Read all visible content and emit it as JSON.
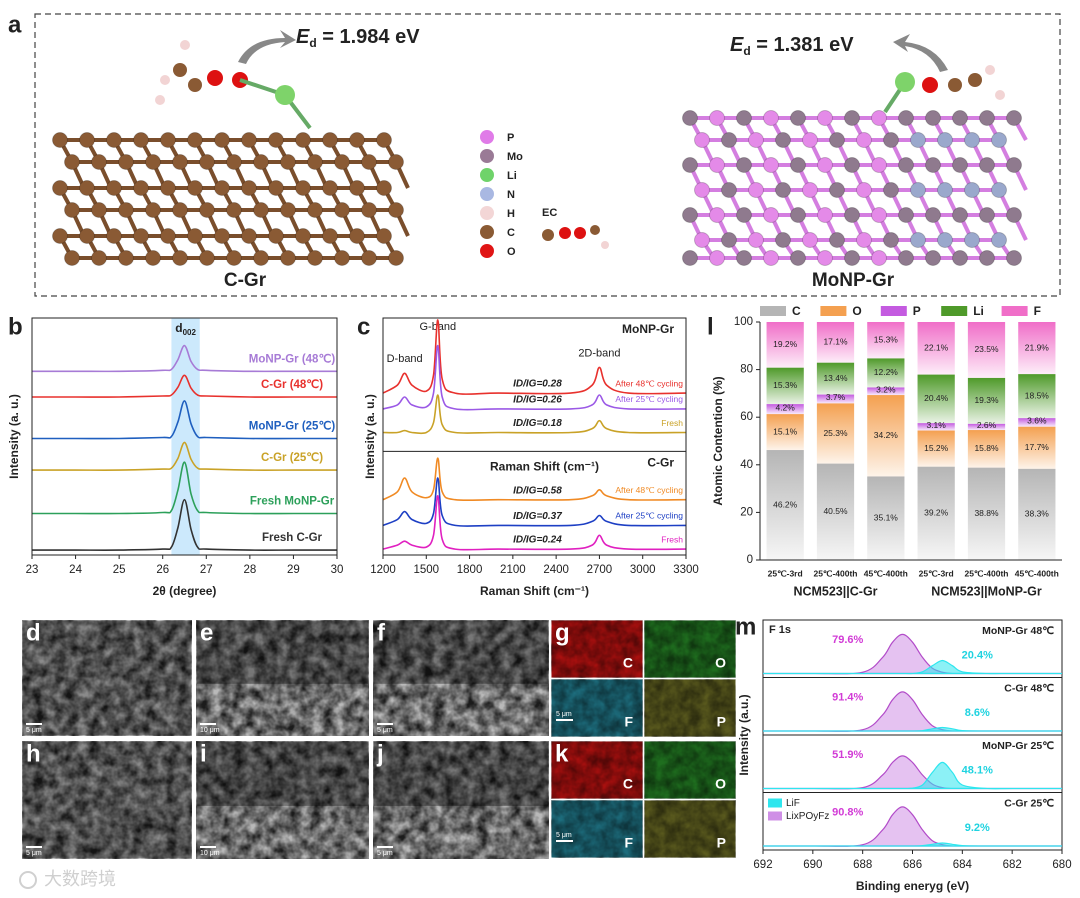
{
  "figure": {
    "panel_a": {
      "label": "a",
      "left": {
        "symbol": "E",
        "sub": "d",
        "text": " = 1.984 eV",
        "name": "C-Gr"
      },
      "right": {
        "symbol": "E",
        "sub": "d",
        "text": " = 1.381 eV",
        "name": "MoNP-Gr"
      },
      "legend": [
        "P",
        "Mo",
        "Li",
        "N",
        "H",
        "C",
        "O"
      ],
      "molecule_label": "EC"
    },
    "sem": [
      {
        "label": "d",
        "scale": "5 μm"
      },
      {
        "label": "e",
        "scale": "10 μm"
      },
      {
        "label": "f",
        "scale": "5 μm"
      },
      {
        "label": "h",
        "scale": "5 μm"
      },
      {
        "label": "i",
        "scale": "10 μm"
      },
      {
        "label": "j",
        "scale": "5 μm"
      }
    ],
    "eds": [
      {
        "label": "g",
        "scale": "5 μm",
        "maps": [
          "C",
          "O",
          "F",
          "P"
        ]
      },
      {
        "label": "k",
        "scale": "5 μm",
        "maps": [
          "C",
          "O",
          "F",
          "P"
        ]
      }
    ],
    "watermark": "大数跨境"
  },
  "chart_data": [
    {
      "panel": "b",
      "type": "line",
      "xlabel": "2θ (degree)",
      "ylabel": "Intensity (a. u.)",
      "x": [
        23,
        24,
        25,
        26,
        26.2,
        26.35,
        26.5,
        26.65,
        26.8,
        27,
        28,
        29,
        30
      ],
      "xlim": [
        23,
        30
      ],
      "xticks": [
        23,
        24,
        25,
        26,
        27,
        28,
        29,
        30
      ],
      "ylim": [
        0,
        12
      ],
      "highlight": [
        26.2,
        26.85
      ],
      "highlight_label": "d",
      "highlight_label_sub": "002",
      "series": [
        {
          "name": "Fresh C-Gr",
          "color": "#333333",
          "values": [
            0.25,
            0.25,
            0.25,
            0.3,
            0.4,
            1.4,
            2.8,
            1.3,
            0.4,
            0.3,
            0.25,
            0.25,
            0.25
          ]
        },
        {
          "name": "Fresh MoNP-Gr",
          "color": "#2ca05a",
          "values": [
            2.1,
            2.1,
            2.1,
            2.15,
            2.25,
            3.3,
            4.7,
            3.1,
            2.25,
            2.15,
            2.1,
            2.1,
            2.1
          ]
        },
        {
          "name": "C-Gr (25℃)",
          "color": "#c9a227",
          "values": [
            4.3,
            4.3,
            4.3,
            4.35,
            4.4,
            4.9,
            5.7,
            4.85,
            4.4,
            4.35,
            4.3,
            4.3,
            4.3
          ]
        },
        {
          "name": "MoNP-Gr (25℃)",
          "color": "#1f5fbf",
          "values": [
            5.9,
            5.9,
            5.9,
            5.95,
            6.0,
            6.75,
            7.8,
            6.65,
            6.0,
            5.95,
            5.9,
            5.9,
            5.9
          ]
        },
        {
          "name": "C-Gr (48℃)",
          "color": "#e8312d",
          "values": [
            8.0,
            8.0,
            8.0,
            8.05,
            8.1,
            8.5,
            9.1,
            8.45,
            8.1,
            8.05,
            8.0,
            8.0,
            8.0
          ]
        },
        {
          "name": "MoNP-Gr (48℃)",
          "color": "#a77bd6",
          "values": [
            9.3,
            9.3,
            9.3,
            9.35,
            9.4,
            9.9,
            10.6,
            9.8,
            9.4,
            9.35,
            9.3,
            9.3,
            9.3
          ]
        }
      ]
    },
    {
      "panel": "c",
      "type": "line",
      "xlabel": "Raman Shift (cm⁻¹)",
      "ylabel": "Intensity (a. u.)",
      "x": [
        1200,
        1300,
        1350,
        1400,
        1500,
        1550,
        1580,
        1610,
        1700,
        2000,
        2500,
        2650,
        2700,
        2750,
        2900,
        3300
      ],
      "xlim": [
        1200,
        3300
      ],
      "xticks": [
        1200,
        1500,
        1800,
        2100,
        2400,
        2700,
        3000,
        3300
      ],
      "ylim": [
        0,
        12
      ],
      "band_labels": [
        "D-band",
        "G-band",
        "2D-band"
      ],
      "groups": [
        "MoNP-Gr",
        "C-Gr"
      ],
      "series": [
        {
          "name": "After 48℃ cycling",
          "ratio_label": "ID/IG=0.28",
          "color": "#e8312d",
          "values": [
            8.2,
            8.6,
            9.2,
            8.6,
            8.3,
            9.1,
            11.9,
            8.9,
            8.2,
            8.2,
            8.2,
            8.6,
            9.5,
            8.6,
            8.2,
            8.2
          ]
        },
        {
          "name": "After 25℃ cycling",
          "ratio_label": "ID/IG=0.26",
          "color": "#9b59e6",
          "values": [
            7.4,
            7.6,
            8.0,
            7.6,
            7.5,
            8.2,
            10.6,
            8.0,
            7.4,
            7.4,
            7.4,
            7.6,
            8.1,
            7.6,
            7.4,
            7.4
          ]
        },
        {
          "name": "Fresh",
          "ratio_label": "ID/IG=0.18",
          "color": "#c9a227",
          "values": [
            6.2,
            6.2,
            6.3,
            6.2,
            6.2,
            6.7,
            8.1,
            6.6,
            6.2,
            6.2,
            6.2,
            6.4,
            6.8,
            6.4,
            6.2,
            6.2
          ]
        },
        {
          "name": "After 48℃ cycling",
          "ratio_label": "ID/IG=0.58",
          "color": "#f08a24",
          "values": [
            2.8,
            3.2,
            3.9,
            3.2,
            2.9,
            3.3,
            4.9,
            3.2,
            2.8,
            2.8,
            2.8,
            3.0,
            3.3,
            3.0,
            2.8,
            2.8
          ]
        },
        {
          "name": "After 25℃ cycling",
          "ratio_label": "ID/IG=0.37",
          "color": "#1d3fc4",
          "values": [
            1.5,
            1.8,
            2.2,
            1.8,
            1.6,
            2.1,
            3.9,
            2.0,
            1.5,
            1.5,
            1.5,
            1.7,
            2.0,
            1.7,
            1.5,
            1.5
          ]
        },
        {
          "name": "Fresh",
          "ratio_label": "ID/IG=0.24",
          "color": "#e020c0",
          "values": [
            0.3,
            0.5,
            0.7,
            0.5,
            0.4,
            1.0,
            3.0,
            0.8,
            0.3,
            0.3,
            0.3,
            0.5,
            1.0,
            0.5,
            0.3,
            0.3
          ]
        }
      ]
    },
    {
      "panel": "l",
      "type": "bar",
      "stacked": true,
      "ylabel": "Atomic Contention (%)",
      "categories": [
        "25℃-3rd",
        "25℃-400th",
        "45℃-400th",
        "25℃-3rd",
        "25℃-400th",
        "45℃-400th"
      ],
      "group_labels": [
        "NCM523||C-Gr",
        "NCM523||MoNP-Gr"
      ],
      "ylim": [
        0,
        100
      ],
      "yticks": [
        0,
        20,
        40,
        60,
        80,
        100
      ],
      "series": [
        {
          "name": "C",
          "color": "#b5b5b5",
          "values": [
            46.2,
            40.5,
            35.1,
            39.2,
            38.8,
            38.3
          ],
          "value_labels": [
            "46.2%",
            "40.5%",
            "35.1%",
            "39.2%",
            "38.8%",
            "38.3%"
          ]
        },
        {
          "name": "O",
          "color": "#f4a050",
          "values": [
            15.1,
            25.3,
            34.2,
            15.2,
            15.8,
            17.7
          ],
          "value_labels": [
            "15.1%",
            "25.3%",
            "34.2%",
            "15.2%",
            "15.8%",
            "17.7%"
          ]
        },
        {
          "name": "P",
          "color": "#c45be0",
          "values": [
            4.2,
            3.7,
            3.2,
            3.1,
            2.6,
            3.6
          ],
          "value_labels": [
            "4.2%",
            "3.7%",
            "3.2%",
            "3.1%",
            "2.6%",
            "3.6%"
          ]
        },
        {
          "name": "Li",
          "color": "#4f9a2a",
          "values": [
            15.3,
            13.4,
            12.2,
            20.4,
            19.3,
            18.5
          ],
          "value_labels": [
            "15.3%",
            "13.4%",
            "12.2%",
            "20.4%",
            "19.3%",
            "18.5%"
          ]
        },
        {
          "name": "F",
          "color": "#f06ec8",
          "values": [
            19.2,
            17.1,
            15.3,
            22.1,
            23.5,
            21.9
          ],
          "value_labels": [
            "19.2%",
            "17.1%",
            "15.3%",
            "22.1%",
            "23.5%",
            "21.9%"
          ]
        }
      ]
    },
    {
      "panel": "m",
      "type": "line",
      "xlabel": "Binding eneryg (eV)",
      "ylabel": "Intensity (a.u.)",
      "core_level": "F 1s",
      "x": [
        692,
        690,
        688,
        687.2,
        686.8,
        686.4,
        686,
        685.6,
        685.2,
        684.8,
        684.4,
        684,
        683,
        682,
        680
      ],
      "xlim": [
        692,
        680
      ],
      "xticks": [
        692,
        690,
        688,
        686,
        684,
        682,
        680
      ],
      "ylim": [
        0,
        1
      ],
      "series": [
        {
          "name": "LixPOyFz",
          "color": "#cf8fe6"
        },
        {
          "name": "LiF",
          "color": "#2ee6ee"
        }
      ],
      "subplots": [
        {
          "title": "MoNP-Gr 48℃",
          "share_labels": [
            "79.6%",
            "20.4%"
          ],
          "values": [
            [
              0,
              0,
              0.03,
              0.37,
              0.72,
              0.9,
              0.72,
              0.37,
              0.12,
              0.03,
              0,
              0,
              0,
              0,
              0
            ],
            [
              0,
              0,
              0,
              0,
              0,
              0,
              0,
              0.04,
              0.18,
              0.3,
              0.18,
              0.04,
              0,
              0,
              0
            ]
          ]
        },
        {
          "title": "C-Gr  48℃",
          "share_labels": [
            "91.4%",
            "8.6%"
          ],
          "values": [
            [
              0,
              0,
              0.03,
              0.37,
              0.72,
              0.9,
              0.72,
              0.37,
              0.12,
              0.03,
              0,
              0,
              0,
              0,
              0
            ],
            [
              0,
              0,
              0,
              0,
              0,
              0,
              0,
              0.01,
              0.05,
              0.08,
              0.05,
              0.01,
              0,
              0,
              0
            ]
          ]
        },
        {
          "title": "MoNP-Gr  25℃",
          "share_labels": [
            "51.9%",
            "48.1%"
          ],
          "values": [
            [
              0,
              0,
              0.02,
              0.31,
              0.6,
              0.75,
              0.6,
              0.31,
              0.1,
              0.02,
              0,
              0,
              0,
              0,
              0
            ],
            [
              0,
              0,
              0,
              0,
              0,
              0,
              0.01,
              0.08,
              0.37,
              0.6,
              0.37,
              0.08,
              0,
              0,
              0
            ]
          ]
        },
        {
          "title": "C-Gr  25℃",
          "share_labels": [
            "90.8%",
            "9.2%"
          ],
          "values": [
            [
              0,
              0,
              0.03,
              0.37,
              0.72,
              0.9,
              0.72,
              0.37,
              0.12,
              0.03,
              0,
              0,
              0,
              0,
              0
            ],
            [
              0,
              0,
              0,
              0,
              0,
              0,
              0,
              0.01,
              0.04,
              0.07,
              0.04,
              0.01,
              0,
              0,
              0
            ]
          ]
        }
      ]
    }
  ]
}
